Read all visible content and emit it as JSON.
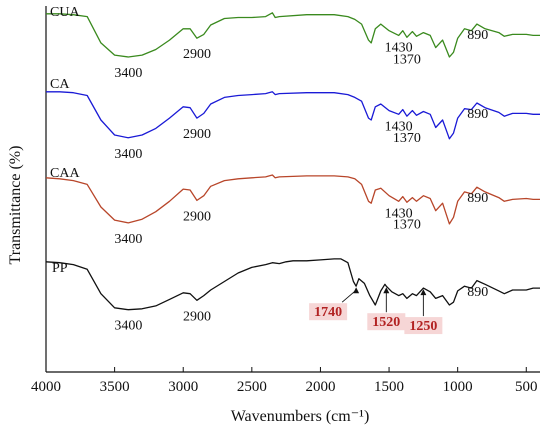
{
  "chart_data": {
    "type": "line",
    "title": "",
    "xlabel": "Wavenumbers (cm⁻¹)",
    "ylabel": "Transmittance (%)",
    "xlim": [
      4000,
      400
    ],
    "x_reversed": true,
    "x_ticks": [
      "4000",
      "3500",
      "3000",
      "2500",
      "2000",
      "1500",
      "1000",
      "500"
    ],
    "y_ticks_shown": false,
    "legend": "none",
    "series": [
      {
        "name": "CUA",
        "color": "#3a8a1e",
        "points": [
          [
            4000,
            0.96
          ],
          [
            3900,
            0.96
          ],
          [
            3800,
            0.95
          ],
          [
            3700,
            0.93
          ],
          [
            3600,
            0.65
          ],
          [
            3500,
            0.52
          ],
          [
            3400,
            0.5
          ],
          [
            3300,
            0.52
          ],
          [
            3200,
            0.58
          ],
          [
            3100,
            0.68
          ],
          [
            3000,
            0.8
          ],
          [
            2950,
            0.8
          ],
          [
            2900,
            0.7
          ],
          [
            2850,
            0.74
          ],
          [
            2800,
            0.84
          ],
          [
            2700,
            0.91
          ],
          [
            2600,
            0.92
          ],
          [
            2500,
            0.92
          ],
          [
            2400,
            0.93
          ],
          [
            2350,
            0.97
          ],
          [
            2330,
            0.92
          ],
          [
            2300,
            0.93
          ],
          [
            2100,
            0.95
          ],
          [
            2000,
            0.95
          ],
          [
            1900,
            0.95
          ],
          [
            1800,
            0.93
          ],
          [
            1750,
            0.9
          ],
          [
            1700,
            0.85
          ],
          [
            1650,
            0.68
          ],
          [
            1630,
            0.65
          ],
          [
            1600,
            0.8
          ],
          [
            1560,
            0.85
          ],
          [
            1500,
            0.78
          ],
          [
            1430,
            0.73
          ],
          [
            1400,
            0.78
          ],
          [
            1370,
            0.71
          ],
          [
            1330,
            0.77
          ],
          [
            1300,
            0.72
          ],
          [
            1250,
            0.76
          ],
          [
            1200,
            0.73
          ],
          [
            1160,
            0.6
          ],
          [
            1110,
            0.68
          ],
          [
            1060,
            0.5
          ],
          [
            1030,
            0.55
          ],
          [
            1000,
            0.7
          ],
          [
            950,
            0.8
          ],
          [
            900,
            0.78
          ],
          [
            860,
            0.85
          ],
          [
            800,
            0.8
          ],
          [
            700,
            0.76
          ],
          [
            660,
            0.72
          ],
          [
            600,
            0.74
          ],
          [
            500,
            0.74
          ],
          [
            450,
            0.73
          ],
          [
            400,
            0.73
          ]
        ]
      },
      {
        "name": "CA",
        "color": "#1a1ad6",
        "points": [
          [
            4000,
            0.96
          ],
          [
            3900,
            0.96
          ],
          [
            3800,
            0.95
          ],
          [
            3700,
            0.92
          ],
          [
            3600,
            0.66
          ],
          [
            3500,
            0.5
          ],
          [
            3400,
            0.47
          ],
          [
            3300,
            0.5
          ],
          [
            3200,
            0.57
          ],
          [
            3100,
            0.68
          ],
          [
            3000,
            0.8
          ],
          [
            2950,
            0.79
          ],
          [
            2900,
            0.68
          ],
          [
            2850,
            0.73
          ],
          [
            2800,
            0.83
          ],
          [
            2700,
            0.9
          ],
          [
            2600,
            0.92
          ],
          [
            2500,
            0.93
          ],
          [
            2400,
            0.94
          ],
          [
            2350,
            0.96
          ],
          [
            2330,
            0.93
          ],
          [
            2300,
            0.94
          ],
          [
            2100,
            0.95
          ],
          [
            2000,
            0.95
          ],
          [
            1900,
            0.95
          ],
          [
            1800,
            0.93
          ],
          [
            1750,
            0.9
          ],
          [
            1700,
            0.86
          ],
          [
            1650,
            0.68
          ],
          [
            1630,
            0.66
          ],
          [
            1600,
            0.8
          ],
          [
            1560,
            0.83
          ],
          [
            1500,
            0.76
          ],
          [
            1430,
            0.72
          ],
          [
            1400,
            0.77
          ],
          [
            1370,
            0.7
          ],
          [
            1330,
            0.76
          ],
          [
            1300,
            0.71
          ],
          [
            1250,
            0.75
          ],
          [
            1200,
            0.72
          ],
          [
            1160,
            0.58
          ],
          [
            1110,
            0.66
          ],
          [
            1060,
            0.46
          ],
          [
            1030,
            0.52
          ],
          [
            1000,
            0.68
          ],
          [
            950,
            0.78
          ],
          [
            900,
            0.77
          ],
          [
            860,
            0.84
          ],
          [
            800,
            0.79
          ],
          [
            700,
            0.74
          ],
          [
            660,
            0.7
          ],
          [
            600,
            0.73
          ],
          [
            500,
            0.73
          ],
          [
            450,
            0.72
          ],
          [
            400,
            0.72
          ]
        ]
      },
      {
        "name": "CAA",
        "color": "#b8462a",
        "points": [
          [
            4000,
            0.97
          ],
          [
            3900,
            0.96
          ],
          [
            3800,
            0.94
          ],
          [
            3700,
            0.9
          ],
          [
            3600,
            0.66
          ],
          [
            3500,
            0.52
          ],
          [
            3400,
            0.49
          ],
          [
            3300,
            0.53
          ],
          [
            3200,
            0.61
          ],
          [
            3100,
            0.72
          ],
          [
            3000,
            0.85
          ],
          [
            2950,
            0.84
          ],
          [
            2900,
            0.73
          ],
          [
            2850,
            0.78
          ],
          [
            2800,
            0.88
          ],
          [
            2700,
            0.94
          ],
          [
            2600,
            0.96
          ],
          [
            2500,
            0.97
          ],
          [
            2400,
            0.98
          ],
          [
            2350,
            1.0
          ],
          [
            2330,
            0.97
          ],
          [
            2300,
            0.98
          ],
          [
            2100,
            0.99
          ],
          [
            2000,
            0.99
          ],
          [
            1900,
            0.99
          ],
          [
            1800,
            0.98
          ],
          [
            1750,
            0.96
          ],
          [
            1700,
            0.9
          ],
          [
            1650,
            0.72
          ],
          [
            1630,
            0.7
          ],
          [
            1600,
            0.84
          ],
          [
            1560,
            0.86
          ],
          [
            1500,
            0.78
          ],
          [
            1430,
            0.72
          ],
          [
            1400,
            0.77
          ],
          [
            1370,
            0.71
          ],
          [
            1330,
            0.76
          ],
          [
            1300,
            0.72
          ],
          [
            1250,
            0.78
          ],
          [
            1200,
            0.75
          ],
          [
            1160,
            0.62
          ],
          [
            1110,
            0.7
          ],
          [
            1060,
            0.48
          ],
          [
            1030,
            0.55
          ],
          [
            1000,
            0.72
          ],
          [
            950,
            0.82
          ],
          [
            900,
            0.8
          ],
          [
            860,
            0.87
          ],
          [
            800,
            0.82
          ],
          [
            700,
            0.76
          ],
          [
            660,
            0.72
          ],
          [
            600,
            0.74
          ],
          [
            500,
            0.75
          ],
          [
            450,
            0.74
          ],
          [
            400,
            0.74
          ]
        ]
      },
      {
        "name": "PP",
        "color": "#111111",
        "points": [
          [
            4000,
            0.96
          ],
          [
            3900,
            0.95
          ],
          [
            3800,
            0.93
          ],
          [
            3700,
            0.88
          ],
          [
            3600,
            0.62
          ],
          [
            3500,
            0.47
          ],
          [
            3400,
            0.45
          ],
          [
            3300,
            0.46
          ],
          [
            3200,
            0.49
          ],
          [
            3100,
            0.56
          ],
          [
            3000,
            0.63
          ],
          [
            2950,
            0.62
          ],
          [
            2900,
            0.55
          ],
          [
            2850,
            0.6
          ],
          [
            2800,
            0.66
          ],
          [
            2700,
            0.75
          ],
          [
            2600,
            0.84
          ],
          [
            2500,
            0.9
          ],
          [
            2400,
            0.93
          ],
          [
            2350,
            0.95
          ],
          [
            2300,
            0.94
          ],
          [
            2250,
            0.96
          ],
          [
            2200,
            0.97
          ],
          [
            2100,
            0.97
          ],
          [
            2000,
            0.98
          ],
          [
            1900,
            0.99
          ],
          [
            1850,
            0.99
          ],
          [
            1800,
            0.95
          ],
          [
            1760,
            0.75
          ],
          [
            1740,
            0.7
          ],
          [
            1720,
            0.78
          ],
          [
            1680,
            0.73
          ],
          [
            1640,
            0.6
          ],
          [
            1600,
            0.5
          ],
          [
            1560,
            0.65
          ],
          [
            1530,
            0.72
          ],
          [
            1520,
            0.7
          ],
          [
            1480,
            0.64
          ],
          [
            1430,
            0.6
          ],
          [
            1400,
            0.62
          ],
          [
            1370,
            0.57
          ],
          [
            1330,
            0.62
          ],
          [
            1300,
            0.6
          ],
          [
            1250,
            0.68
          ],
          [
            1200,
            0.64
          ],
          [
            1160,
            0.57
          ],
          [
            1110,
            0.6
          ],
          [
            1060,
            0.5
          ],
          [
            1030,
            0.53
          ],
          [
            1000,
            0.65
          ],
          [
            950,
            0.7
          ],
          [
            900,
            0.68
          ],
          [
            860,
            0.76
          ],
          [
            800,
            0.72
          ],
          [
            700,
            0.65
          ],
          [
            660,
            0.62
          ],
          [
            600,
            0.66
          ],
          [
            500,
            0.66
          ],
          [
            450,
            0.68
          ],
          [
            400,
            0.68
          ]
        ]
      }
    ],
    "peak_labels": [
      {
        "series": "CUA",
        "text": "3400",
        "x": 3400
      },
      {
        "series": "CUA",
        "text": "2900",
        "x": 2900
      },
      {
        "series": "CUA",
        "text": "1430",
        "x": 1430
      },
      {
        "series": "CUA",
        "text": "1370",
        "x": 1370
      },
      {
        "series": "CUA",
        "text": "890",
        "x": 890
      },
      {
        "series": "CA",
        "text": "3400",
        "x": 3400
      },
      {
        "series": "CA",
        "text": "2900",
        "x": 2900
      },
      {
        "series": "CA",
        "text": "1430",
        "x": 1430
      },
      {
        "series": "CA",
        "text": "1370",
        "x": 1370
      },
      {
        "series": "CA",
        "text": "890",
        "x": 890
      },
      {
        "series": "CAA",
        "text": "3400",
        "x": 3400
      },
      {
        "series": "CAA",
        "text": "2900",
        "x": 2900
      },
      {
        "series": "CAA",
        "text": "1430",
        "x": 1430
      },
      {
        "series": "CAA",
        "text": "1370",
        "x": 1370
      },
      {
        "series": "CAA",
        "text": "890",
        "x": 890
      },
      {
        "series": "PP",
        "text": "3400",
        "x": 3400
      },
      {
        "series": "PP",
        "text": "2900",
        "x": 2900
      },
      {
        "series": "PP",
        "text": "890",
        "x": 890
      }
    ],
    "highlighted_peaks": [
      {
        "series": "PP",
        "text": "1740",
        "x": 1740,
        "highlight_color": "#f6d6d6",
        "text_color": "#b22222"
      },
      {
        "series": "PP",
        "text": "1520",
        "x": 1520,
        "highlight_color": "#f6d6d6",
        "text_color": "#b22222"
      },
      {
        "series": "PP",
        "text": "1250",
        "x": 1250,
        "highlight_color": "#f6d6d6",
        "text_color": "#b22222"
      }
    ]
  }
}
